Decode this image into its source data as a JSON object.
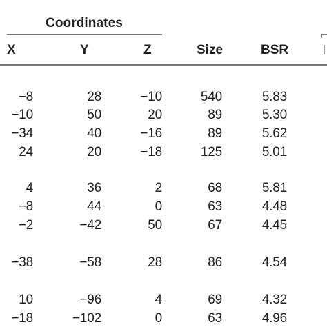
{
  "table": {
    "group_header": "Coordinates",
    "columns": [
      "X",
      "Y",
      "Z",
      "Size",
      "BSR"
    ],
    "rows": [
      {
        "x": "−8",
        "y": "28",
        "z": "−10",
        "size": "540",
        "bsr": "5.83"
      },
      {
        "x": "−10",
        "y": "50",
        "z": "20",
        "size": "89",
        "bsr": "5.30"
      },
      {
        "x": "−34",
        "y": "40",
        "z": "−16",
        "size": "89",
        "bsr": "5.62"
      },
      {
        "x": "24",
        "y": "20",
        "z": "−18",
        "size": "125",
        "bsr": "5.01"
      },
      {
        "x": "4",
        "y": "36",
        "z": "2",
        "size": "68",
        "bsr": "5.81"
      },
      {
        "x": "−8",
        "y": "44",
        "z": "0",
        "size": "63",
        "bsr": "4.48"
      },
      {
        "x": "−2",
        "y": "−42",
        "z": "50",
        "size": "67",
        "bsr": "4.45"
      },
      {
        "x": "−38",
        "y": "−58",
        "z": "28",
        "size": "86",
        "bsr": "4.54"
      },
      {
        "x": "10",
        "y": "−96",
        "z": "4",
        "size": "69",
        "bsr": "4.32"
      },
      {
        "x": "−18",
        "y": "−102",
        "z": "0",
        "size": "63",
        "bsr": "4.96"
      }
    ]
  }
}
